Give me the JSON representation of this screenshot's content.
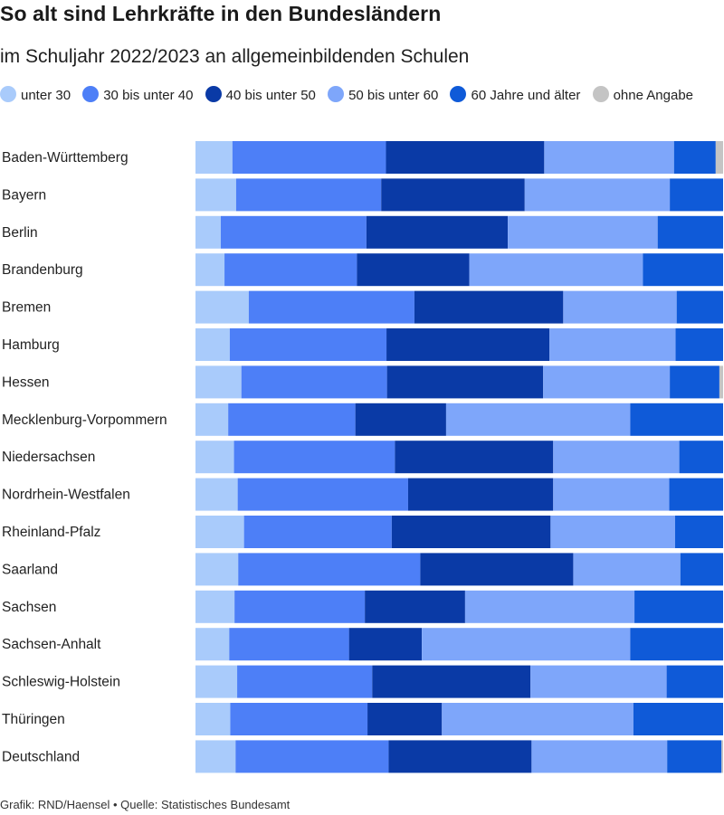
{
  "header": {
    "title": "So alt sind Lehrkräfte in den Bundesländern",
    "subtitle": "im Schuljahr 2022/2023 an allgemeinbildenden Schulen"
  },
  "footer": {
    "credit": "Grafik: RND/Haensel • Quelle: Statistisches Bundesamt"
  },
  "colors": {
    "unter_30": "#a9cbfb",
    "30_bis_40": "#4d7ff7",
    "40_bis_50": "#0a3aa6",
    "50_bis_60": "#7ea6fa",
    "60_plus": "#0f5ad8",
    "ohne_angabe": "#c4c4c4"
  },
  "chart_data": {
    "type": "bar",
    "orientation": "horizontal",
    "stacked": true,
    "normalized": true,
    "title": "So alt sind Lehrkräfte in den Bundesländern",
    "subtitle": "im Schuljahr 2022/2023 an allgemeinbildenden Schulen",
    "xlim": [
      0,
      100
    ],
    "grid": false,
    "legend_position": "top",
    "categories": [
      "Baden-Württemberg",
      "Bayern",
      "Berlin",
      "Brandenburg",
      "Bremen",
      "Hamburg",
      "Hessen",
      "Mecklenburg-Vorpommern",
      "Niedersachsen",
      "Nordrhein-Westfalen",
      "Rheinland-Pfalz",
      "Saarland",
      "Sachsen",
      "Sachsen-Anhalt",
      "Schleswig-Holstein",
      "Thüringen",
      "Deutschland"
    ],
    "series": [
      {
        "name": "unter 30",
        "color": "#a9cbfb",
        "values": [
          7.0,
          7.7,
          4.8,
          5.5,
          10.1,
          6.5,
          8.7,
          6.2,
          7.3,
          8.0,
          9.2,
          8.1,
          7.4,
          6.4,
          7.9,
          6.6,
          7.6
        ]
      },
      {
        "name": "30 bis unter 40",
        "color": "#4d7ff7",
        "values": [
          29.1,
          27.5,
          27.6,
          25.1,
          31.4,
          29.7,
          27.6,
          24.1,
          30.5,
          32.3,
          28.0,
          34.5,
          24.7,
          22.7,
          25.6,
          26.0,
          29.0
        ]
      },
      {
        "name": "40 bis unter 50",
        "color": "#0a3aa6",
        "values": [
          30.0,
          27.2,
          26.8,
          21.3,
          28.2,
          30.9,
          29.6,
          17.2,
          30.0,
          27.5,
          30.1,
          29.0,
          19.0,
          13.8,
          30.0,
          14.1,
          27.1
        ]
      },
      {
        "name": "50 bis unter 60",
        "color": "#7ea6fa",
        "values": [
          24.6,
          27.5,
          28.4,
          32.9,
          21.5,
          23.9,
          24.0,
          34.9,
          23.9,
          22.0,
          23.6,
          20.3,
          32.1,
          39.5,
          25.8,
          36.3,
          25.7
        ]
      },
      {
        "name": "60 Jahre und älter",
        "color": "#0f5ad8",
        "values": [
          7.9,
          10.1,
          12.4,
          15.2,
          8.8,
          9.0,
          9.4,
          17.6,
          8.3,
          10.2,
          9.1,
          8.1,
          16.8,
          17.6,
          10.7,
          17.0,
          10.3
        ]
      },
      {
        "name": "ohne Angabe",
        "color": "#c4c4c4",
        "values": [
          1.4,
          0,
          0,
          0,
          0,
          0,
          0.7,
          0,
          0,
          0,
          0,
          0,
          0,
          0,
          0,
          0,
          0.3
        ]
      }
    ]
  }
}
